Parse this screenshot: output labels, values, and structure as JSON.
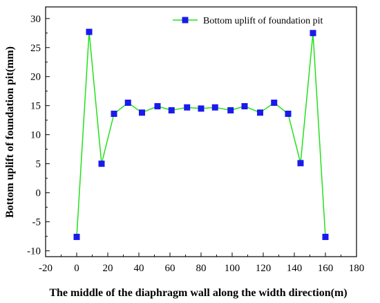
{
  "chart_data": {
    "type": "line",
    "xlabel": "The middle of the diaphragm wall along the width direction(m)",
    "ylabel": "Bottom uplift of foundation pit(mm)",
    "xlim": [
      -20,
      180
    ],
    "ylim": [
      -11,
      32
    ],
    "xticks": [
      -20,
      0,
      20,
      40,
      60,
      80,
      100,
      120,
      140,
      160,
      180
    ],
    "yticks": [
      -10,
      -5,
      0,
      5,
      10,
      15,
      20,
      25,
      30
    ],
    "legend_position": "top-right",
    "series": [
      {
        "name": "Bottom uplift of foundation pit",
        "line_color": "#22e01a",
        "marker_color": "#1a1aee",
        "x": [
          0,
          8,
          16,
          24,
          33,
          42,
          52,
          61,
          71,
          80,
          89,
          99,
          108,
          118,
          127,
          136,
          144,
          152,
          160
        ],
        "y": [
          -7.6,
          27.7,
          5.0,
          13.6,
          15.5,
          13.8,
          14.9,
          14.2,
          14.7,
          14.5,
          14.7,
          14.2,
          14.9,
          13.8,
          15.5,
          13.6,
          5.1,
          27.5,
          -7.6
        ]
      }
    ]
  }
}
